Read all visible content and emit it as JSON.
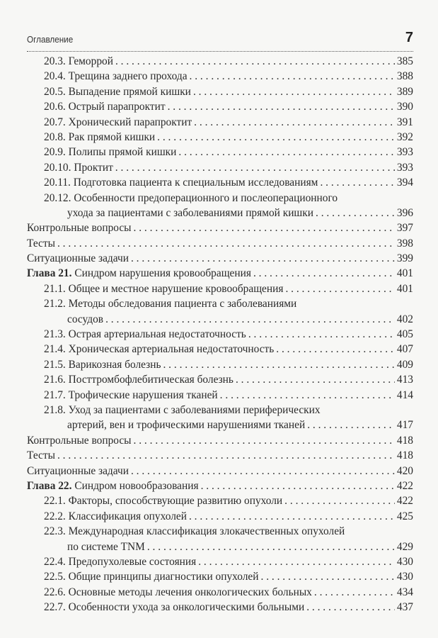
{
  "header": {
    "title": "Оглавление",
    "page_number": "7"
  },
  "entries": [
    {
      "level": 1,
      "lines": [
        "20.3. Геморрой"
      ],
      "page": "385"
    },
    {
      "level": 1,
      "lines": [
        "20.4. Трещина заднего прохода"
      ],
      "page": "388"
    },
    {
      "level": 1,
      "lines": [
        "20.5. Выпадение прямой кишки"
      ],
      "page": "389"
    },
    {
      "level": 1,
      "lines": [
        "20.6. Острый парапроктит"
      ],
      "page": "390"
    },
    {
      "level": 1,
      "lines": [
        "20.7. Хронический парапроктит"
      ],
      "page": "391"
    },
    {
      "level": 1,
      "lines": [
        "20.8. Рак прямой кишки"
      ],
      "page": "392"
    },
    {
      "level": 1,
      "lines": [
        "20.9. Полипы прямой кишки"
      ],
      "page": "393"
    },
    {
      "level": 1,
      "lines": [
        "20.10. Проктит"
      ],
      "page": "393"
    },
    {
      "level": 1,
      "lines": [
        "20.11. Подготовка пациента к специальным исследованиям"
      ],
      "page": "394"
    },
    {
      "level": 1,
      "lines": [
        "20.12. Особенности предоперационного и послеоперационного",
        "ухода за пациентами с заболеваниями прямой кишки"
      ],
      "page": "396"
    },
    {
      "level": 0,
      "lines": [
        "Контрольные вопросы"
      ],
      "page": "397"
    },
    {
      "level": 0,
      "lines": [
        "Тесты"
      ],
      "page": "398"
    },
    {
      "level": 0,
      "lines": [
        "Ситуационные задачи"
      ],
      "page": "399"
    },
    {
      "level": 0,
      "bold": "Глава 21.",
      "lines": [
        " Синдром нарушения кровообращения"
      ],
      "page": "401"
    },
    {
      "level": 1,
      "lines": [
        "21.1. Общее и местное нарушение кровообращения"
      ],
      "page": "401"
    },
    {
      "level": 1,
      "lines": [
        "21.2. Методы обследования пациента с заболеваниями",
        "сосудов"
      ],
      "page": "402"
    },
    {
      "level": 1,
      "lines": [
        "21.3. Острая артериальная недостаточность"
      ],
      "page": "405"
    },
    {
      "level": 1,
      "lines": [
        "21.4. Хроническая артериальная недостаточность"
      ],
      "page": "407"
    },
    {
      "level": 1,
      "lines": [
        "21.5. Варикозная болезнь"
      ],
      "page": "409"
    },
    {
      "level": 1,
      "lines": [
        "21.6. Посттромбофлебитическая болезнь"
      ],
      "page": "413"
    },
    {
      "level": 1,
      "lines": [
        "21.7. Трофические нарушения тканей"
      ],
      "page": "414"
    },
    {
      "level": 1,
      "lines": [
        "21.8. Уход за пациентами с заболеваниями периферических",
        "артерий, вен и трофическими нарушениями тканей"
      ],
      "page": "417"
    },
    {
      "level": 0,
      "lines": [
        "Контрольные вопросы"
      ],
      "page": "418"
    },
    {
      "level": 0,
      "lines": [
        "Тесты"
      ],
      "page": "418"
    },
    {
      "level": 0,
      "lines": [
        "Ситуационные задачи"
      ],
      "page": "420"
    },
    {
      "level": 0,
      "bold": "Глава 22.",
      "lines": [
        " Синдром новообразования"
      ],
      "page": "422"
    },
    {
      "level": 1,
      "lines": [
        "22.1. Факторы, способствующие развитию опухоли"
      ],
      "page": "422"
    },
    {
      "level": 1,
      "lines": [
        "22.2. Классификация опухолей"
      ],
      "page": "425"
    },
    {
      "level": 1,
      "lines": [
        "22.3. Международная классификация злокачественных опухолей",
        "по системе TNM"
      ],
      "page": "429"
    },
    {
      "level": 1,
      "lines": [
        "22.4. Предопухолевые состояния"
      ],
      "page": "430"
    },
    {
      "level": 1,
      "lines": [
        "22.5. Общие принципы диагностики опухолей"
      ],
      "page": "430"
    },
    {
      "level": 1,
      "lines": [
        "22.6. Основные методы лечения онкологических больных"
      ],
      "page": "434"
    },
    {
      "level": 1,
      "lines": [
        "22.7. Особенности ухода за онкологическими больными"
      ],
      "page": "437"
    }
  ]
}
